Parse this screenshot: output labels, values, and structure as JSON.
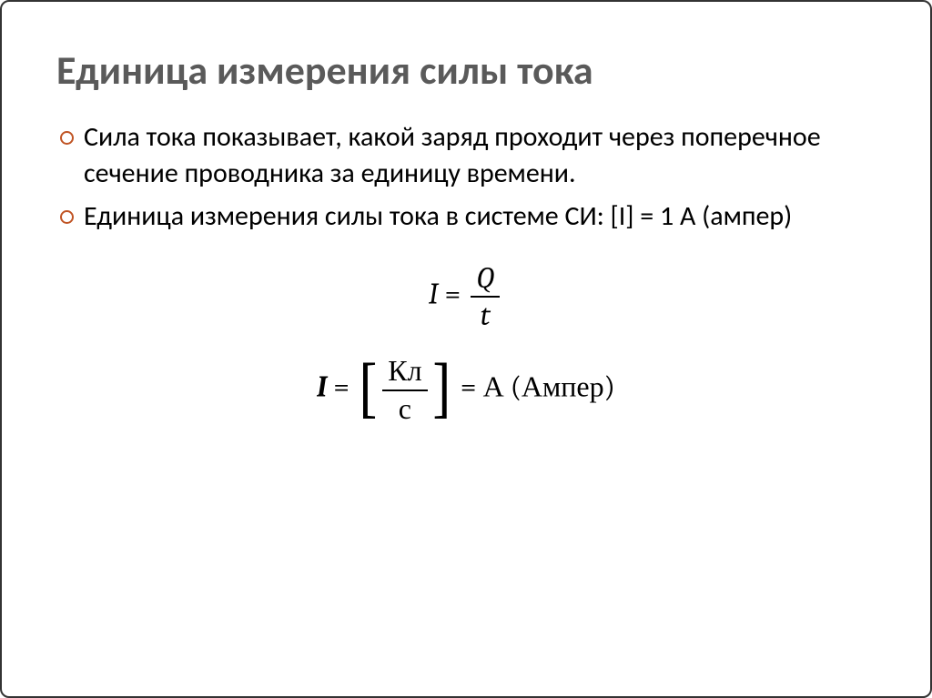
{
  "slide": {
    "title": "Единица измерения силы тока",
    "bullets": [
      "Сила тока показывает, какой заряд проходит через поперечное сечение проводника за единицу времени.",
      "Единица измерения силы тока в системе СИ: [I] = 1 А (ампер)"
    ],
    "formula1": {
      "left": "I",
      "eq": "=",
      "num": "Q",
      "den": "t"
    },
    "formula2": {
      "left": "I",
      "eq1": "=",
      "lbracket": "[",
      "num": "Кл",
      "den": "с",
      "rbracket": "]",
      "eq2": "=",
      "right": "А (Ампер)"
    }
  },
  "style": {
    "title_color": "#5a5a5a",
    "title_fontsize": 44,
    "bullet_fontsize": 30,
    "bullet_marker_color": "#c05424",
    "formula_fontsize": 32,
    "text_color": "#000000",
    "border_color": "#333333",
    "background": "#ffffff"
  }
}
